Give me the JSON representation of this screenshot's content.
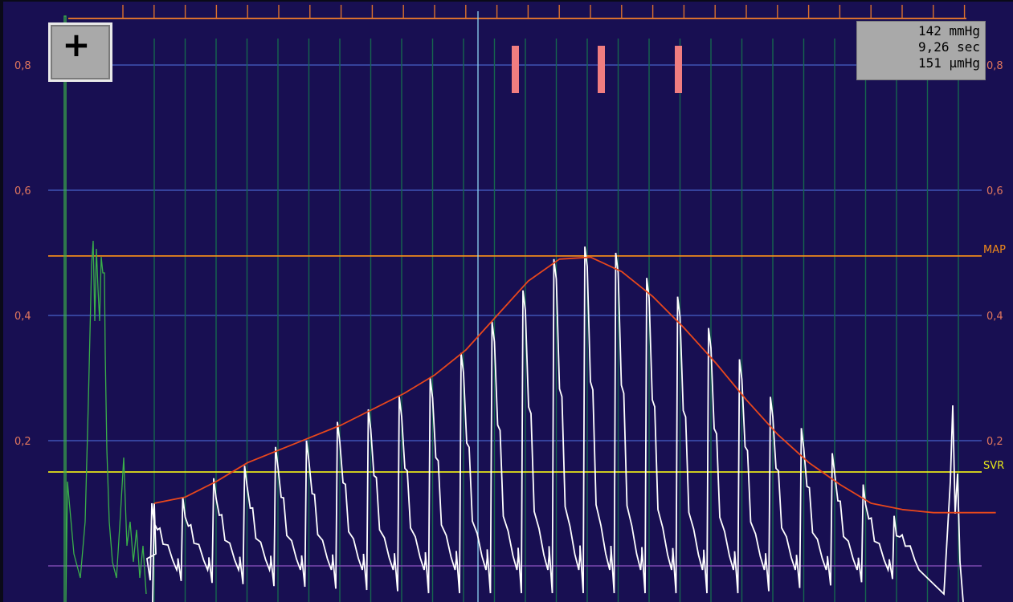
{
  "zoom_button": {
    "label": "+"
  },
  "readout": {
    "pressure": "142 mmHg",
    "time": "9,26 sec",
    "amplitude": "151 µmHg"
  },
  "reference_lines": {
    "map_label": "MAP",
    "svr_label": "SVR"
  },
  "colors": {
    "background": "#180f52",
    "grid_horizontal": "#3f54b5",
    "grid_vertical": "#16664e",
    "envelope": "#e8471c",
    "signal": "#ffffff",
    "green_trace": "#3ab04a",
    "map_line": "#f08a1a",
    "svr_line": "#e6e619",
    "baseline": "#7a49b0",
    "cursor": "#8fd7f2",
    "markers": "#f07d80",
    "ruler": "#d9702e",
    "tick_labels": "#e2775d"
  },
  "chart_data": {
    "type": "line",
    "y_ticks": [
      "0,2",
      "0,4",
      "0,6",
      "0,8"
    ],
    "y_tick_values": [
      0.2,
      0.4,
      0.6,
      0.8
    ],
    "ylim": [
      -0.05,
      0.9
    ],
    "grid": true,
    "baseline_value": 0.0,
    "map_value": 0.495,
    "svr_value": 0.15,
    "envelope": {
      "x": [
        0,
        1,
        2,
        3,
        4,
        5,
        6,
        7,
        8,
        9,
        10,
        11,
        12,
        13,
        14,
        15,
        16,
        17,
        18,
        19,
        20,
        21,
        22,
        23,
        24,
        25,
        26,
        27
      ],
      "y": [
        0.1,
        0.11,
        0.135,
        0.165,
        0.185,
        0.205,
        0.225,
        0.25,
        0.275,
        0.305,
        0.345,
        0.4,
        0.455,
        0.49,
        0.493,
        0.47,
        0.43,
        0.38,
        0.325,
        0.265,
        0.21,
        0.165,
        0.13,
        0.1,
        0.09,
        0.085,
        0.085,
        0.085
      ]
    },
    "pulse_peaks": {
      "x": [
        0,
        1,
        2,
        3,
        4,
        5,
        6,
        7,
        8,
        9,
        10,
        11,
        12,
        13,
        14,
        15,
        16,
        17,
        18,
        19,
        20,
        21,
        22,
        23,
        24
      ],
      "y": [
        0.1,
        0.11,
        0.14,
        0.16,
        0.19,
        0.2,
        0.23,
        0.25,
        0.27,
        0.3,
        0.34,
        0.39,
        0.44,
        0.49,
        0.51,
        0.5,
        0.46,
        0.43,
        0.38,
        0.33,
        0.27,
        0.22,
        0.18,
        0.13,
        0.08
      ]
    },
    "markers": [
      0.75,
      0.75,
      0.75
    ]
  }
}
